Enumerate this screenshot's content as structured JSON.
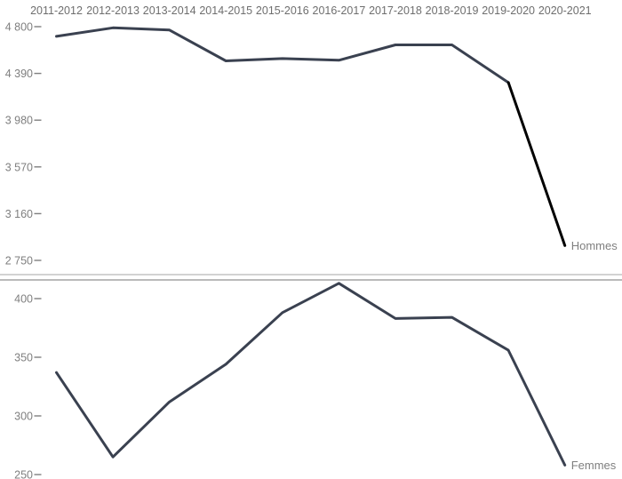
{
  "figure": {
    "background": "#ffffff",
    "line_color": "#3a4150",
    "highlight_color": "#000000",
    "category_label_color": "#6e6e6e",
    "tick_label_color": "#7f7f7f",
    "series_label_color": "#7f7f7f",
    "divider_colors": [
      "#cccccc",
      "#b0b0b0"
    ]
  },
  "chart_data": [
    {
      "type": "line",
      "title": "",
      "xlabel": "",
      "ylabel": "",
      "series_label": "Hommes",
      "categories": [
        "2011-2012",
        "2012-2013",
        "2013-2014",
        "2014-2015",
        "2015-2016",
        "2016-2017",
        "2017-2018",
        "2018-2019",
        "2019-2020",
        "2020-2021"
      ],
      "values": [
        4715,
        4790,
        4770,
        4500,
        4520,
        4505,
        4640,
        4640,
        4310,
        2880
      ],
      "ylim": [
        2750,
        4800
      ],
      "yticks": [
        {
          "label": "4 800",
          "value": 4800
        },
        {
          "label": "4 390",
          "value": 4390
        },
        {
          "label": "3 980",
          "value": 3980
        },
        {
          "label": "3 570",
          "value": 3570
        },
        {
          "label": "3 160",
          "value": 3160
        },
        {
          "label": "2 750",
          "value": 2750
        }
      ],
      "grid": false,
      "legend_position": "end-of-line-label",
      "category_labels_shown": true,
      "highlight_last_segment": true
    },
    {
      "type": "line",
      "title": "",
      "xlabel": "",
      "ylabel": "",
      "series_label": "Femmes",
      "categories": [
        "2011-2012",
        "2012-2013",
        "2013-2014",
        "2014-2015",
        "2015-2016",
        "2016-2017",
        "2017-2018",
        "2018-2019",
        "2019-2020",
        "2020-2021"
      ],
      "values": [
        337,
        265,
        312,
        344,
        388,
        413,
        383,
        384,
        356,
        258
      ],
      "ylim": [
        250,
        400
      ],
      "yticks": [
        {
          "label": "400",
          "value": 400
        },
        {
          "label": "350",
          "value": 350
        },
        {
          "label": "300",
          "value": 300
        },
        {
          "label": "250",
          "value": 250
        }
      ],
      "grid": false,
      "legend_position": "end-of-line-label",
      "category_labels_shown": false,
      "highlight_last_segment": false
    }
  ]
}
